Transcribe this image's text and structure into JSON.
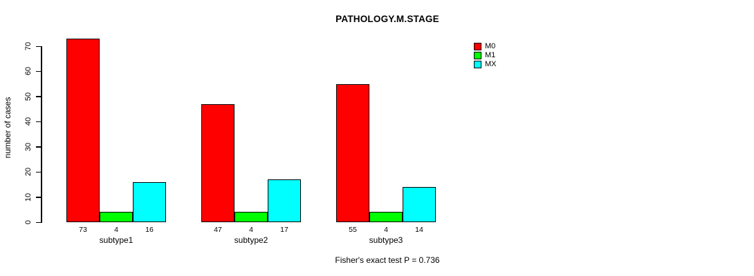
{
  "title": "PATHOLOGY.M.STAGE",
  "y_axis": {
    "label": "number of cases",
    "ticks": [
      "0",
      "10",
      "20",
      "30",
      "40",
      "50",
      "60",
      "70"
    ]
  },
  "legend": {
    "items": [
      {
        "label": "M0",
        "color": "#ff0000"
      },
      {
        "label": "M1",
        "color": "#00ff00"
      },
      {
        "label": "MX",
        "color": "#00ffff"
      }
    ]
  },
  "footer": {
    "text": "Fisher's exact test P = 0.736"
  },
  "chart_data": {
    "type": "bar",
    "title": "PATHOLOGY.M.STAGE",
    "categories": [
      "subtype1",
      "subtype2",
      "subtype3"
    ],
    "series": [
      {
        "name": "M0",
        "color": "#ff0000",
        "values": [
          73,
          47,
          55
        ]
      },
      {
        "name": "M1",
        "color": "#00ff00",
        "values": [
          4,
          4,
          4
        ]
      },
      {
        "name": "MX",
        "color": "#00ffff",
        "values": [
          16,
          17,
          14
        ]
      }
    ],
    "xlabel": "",
    "ylabel": "number of cases",
    "ylim": [
      0,
      70
    ],
    "yticks": [
      0,
      10,
      20,
      30,
      40,
      50,
      60,
      70
    ],
    "bar_value_labels_shown": true,
    "grid": false,
    "legend_position": "top-right",
    "annotation": "Fisher's exact test P = 0.736"
  }
}
